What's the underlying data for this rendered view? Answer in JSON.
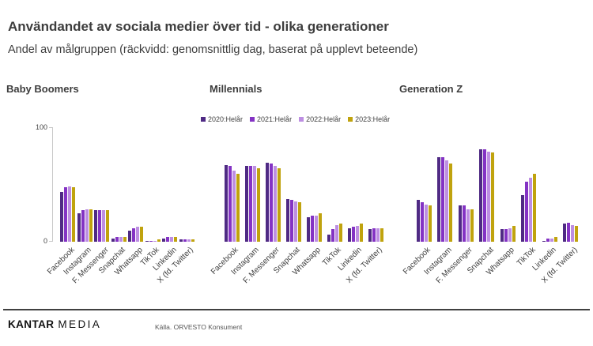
{
  "header": {
    "title": "Användandet av sociala medier över tid - olika generationer",
    "subtitle": "Andel av målgruppen (räckvidd: genomsnittlig dag, baserat på upplevt beteende)"
  },
  "colors": {
    "s2020": "#4f2a84",
    "s2021": "#8433c4",
    "s2022": "#bd8ee2",
    "s2023": "#c0a30e",
    "axis": "#c9c9c9",
    "text": "#3d3d3d"
  },
  "legend": {
    "items": [
      {
        "label": "2020:Helår",
        "color": "#4f2a84"
      },
      {
        "label": "2021:Helår",
        "color": "#8433c4"
      },
      {
        "label": "2022:Helår",
        "color": "#bd8ee2"
      },
      {
        "label": "2023:Helår",
        "color": "#c0a30e"
      }
    ]
  },
  "y_axis": {
    "max_label": "100",
    "min_label": "0"
  },
  "chart_data": [
    {
      "type": "bar",
      "title": "Baby Boomers",
      "ylim": [
        0,
        100
      ],
      "grid": false,
      "legend_position": "top-center",
      "categories": [
        "Facebook",
        "Instagram",
        "F. Messenger",
        "Snapchat",
        "Whatsapp",
        "TikTok",
        "Linkedin",
        "X (fd. Twitter)"
      ],
      "series": [
        {
          "name": "2020:Helår",
          "color": "#4f2a84",
          "values": [
            44,
            25,
            28,
            3,
            10,
            1,
            3,
            2
          ]
        },
        {
          "name": "2021:Helår",
          "color": "#8433c4",
          "values": [
            48,
            28,
            28,
            4,
            12,
            1,
            4,
            2
          ]
        },
        {
          "name": "2022:Helår",
          "color": "#bd8ee2",
          "values": [
            49,
            29,
            28,
            4,
            13,
            1,
            4,
            2
          ]
        },
        {
          "name": "2023:Helår",
          "color": "#c0a30e",
          "values": [
            48,
            29,
            28,
            4,
            13,
            2,
            4,
            2
          ]
        }
      ]
    },
    {
      "type": "bar",
      "title": "Millennials",
      "ylim": [
        0,
        100
      ],
      "grid": false,
      "legend_position": "top-center",
      "categories": [
        "Facebook",
        "Instagram",
        "F. Messenger",
        "Snapchat",
        "Whatsapp",
        "TikTok",
        "Linkedin",
        "X (fd. Twitter)"
      ],
      "series": [
        {
          "name": "2020:Helår",
          "color": "#4f2a84",
          "values": [
            68,
            67,
            70,
            38,
            22,
            6,
            12,
            11
          ]
        },
        {
          "name": "2021:Helår",
          "color": "#8433c4",
          "values": [
            67,
            67,
            69,
            37,
            23,
            11,
            13,
            12
          ]
        },
        {
          "name": "2022:Helår",
          "color": "#bd8ee2",
          "values": [
            63,
            67,
            67,
            36,
            23,
            15,
            14,
            12
          ]
        },
        {
          "name": "2023:Helår",
          "color": "#c0a30e",
          "values": [
            60,
            65,
            65,
            35,
            25,
            16,
            16,
            12
          ]
        }
      ]
    },
    {
      "type": "bar",
      "title": "Generation Z",
      "ylim": [
        0,
        100
      ],
      "grid": false,
      "legend_position": "top-center",
      "categories": [
        "Facebook",
        "Instagram",
        "F. Messenger",
        "Snapchat",
        "Whatsapp",
        "TikTok",
        "Linkedin",
        "X (fd. Twitter)"
      ],
      "series": [
        {
          "name": "2020:Helår",
          "color": "#4f2a84",
          "values": [
            37,
            75,
            32,
            82,
            11,
            41,
            1,
            16
          ]
        },
        {
          "name": "2021:Helår",
          "color": "#8433c4",
          "values": [
            35,
            75,
            32,
            82,
            11,
            53,
            3,
            17
          ]
        },
        {
          "name": "2022:Helår",
          "color": "#bd8ee2",
          "values": [
            33,
            72,
            29,
            80,
            12,
            57,
            3,
            15
          ]
        },
        {
          "name": "2023:Helår",
          "color": "#c0a30e",
          "values": [
            32,
            69,
            29,
            79,
            14,
            60,
            4,
            14
          ]
        }
      ]
    }
  ],
  "footer": {
    "logo_kantar": "KANTAR",
    "logo_media": "MEDIA",
    "source": "Källa. ORVESTO Konsument"
  }
}
